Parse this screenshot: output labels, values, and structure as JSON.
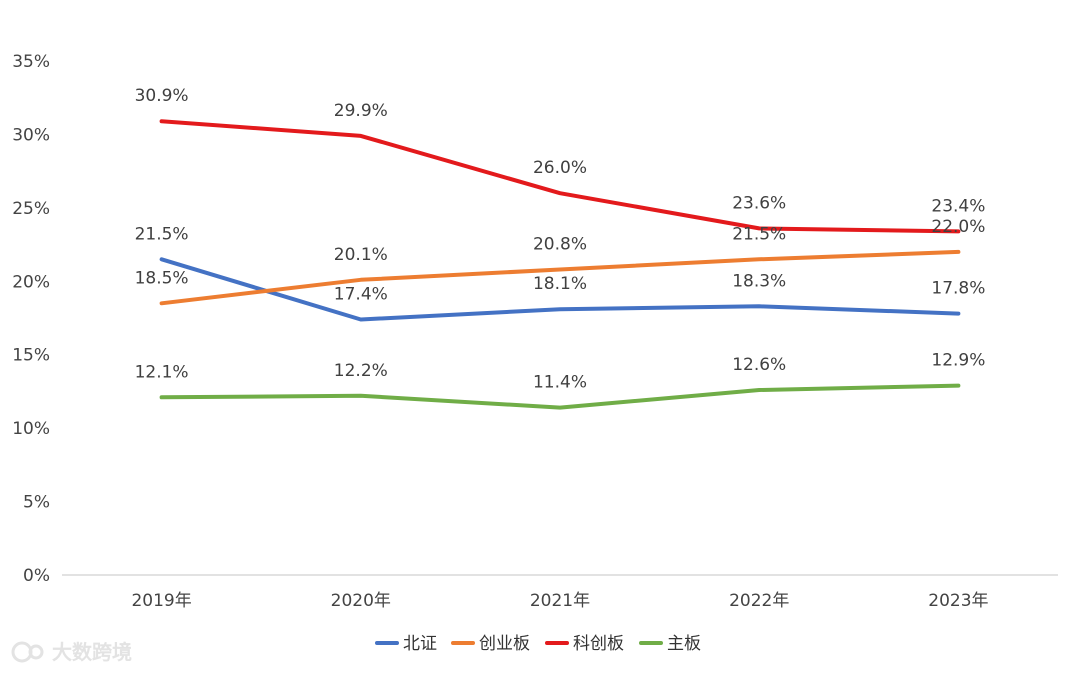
{
  "chart_data": {
    "type": "line",
    "title": "",
    "xlabel": "",
    "ylabel": "",
    "categories": [
      "2019年",
      "2020年",
      "2021年",
      "2022年",
      "2023年"
    ],
    "ylim": [
      0,
      35
    ],
    "yticks": [
      0,
      5,
      10,
      15,
      20,
      25,
      30,
      35
    ],
    "ytick_labels": [
      "0%",
      "5%",
      "10%",
      "15%",
      "20%",
      "25%",
      "30%",
      "35%"
    ],
    "grid": false,
    "legend_position": "bottom",
    "series": [
      {
        "name": "北证",
        "color": "#4472c4",
        "values": [
          21.5,
          17.4,
          18.1,
          18.3,
          17.8
        ],
        "labels": [
          "21.5%",
          "17.4%",
          "18.1%",
          "18.3%",
          "17.8%"
        ]
      },
      {
        "name": "创业板",
        "color": "#ed7d31",
        "values": [
          18.5,
          20.1,
          20.8,
          21.5,
          22.0
        ],
        "labels": [
          "18.5%",
          "20.1%",
          "20.8%",
          "21.5%",
          "22.0%"
        ]
      },
      {
        "name": "科创板",
        "color": "#e31a1c",
        "values": [
          30.9,
          29.9,
          26.0,
          23.6,
          23.4
        ],
        "labels": [
          "30.9%",
          "29.9%",
          "26.0%",
          "23.6%",
          "23.4%"
        ]
      },
      {
        "name": "主板",
        "color": "#70ad47",
        "values": [
          12.1,
          12.2,
          11.4,
          12.6,
          12.9
        ],
        "labels": [
          "12.1%",
          "12.2%",
          "11.4%",
          "12.6%",
          "12.9%"
        ]
      }
    ]
  },
  "watermark": {
    "text": "大数跨境"
  }
}
